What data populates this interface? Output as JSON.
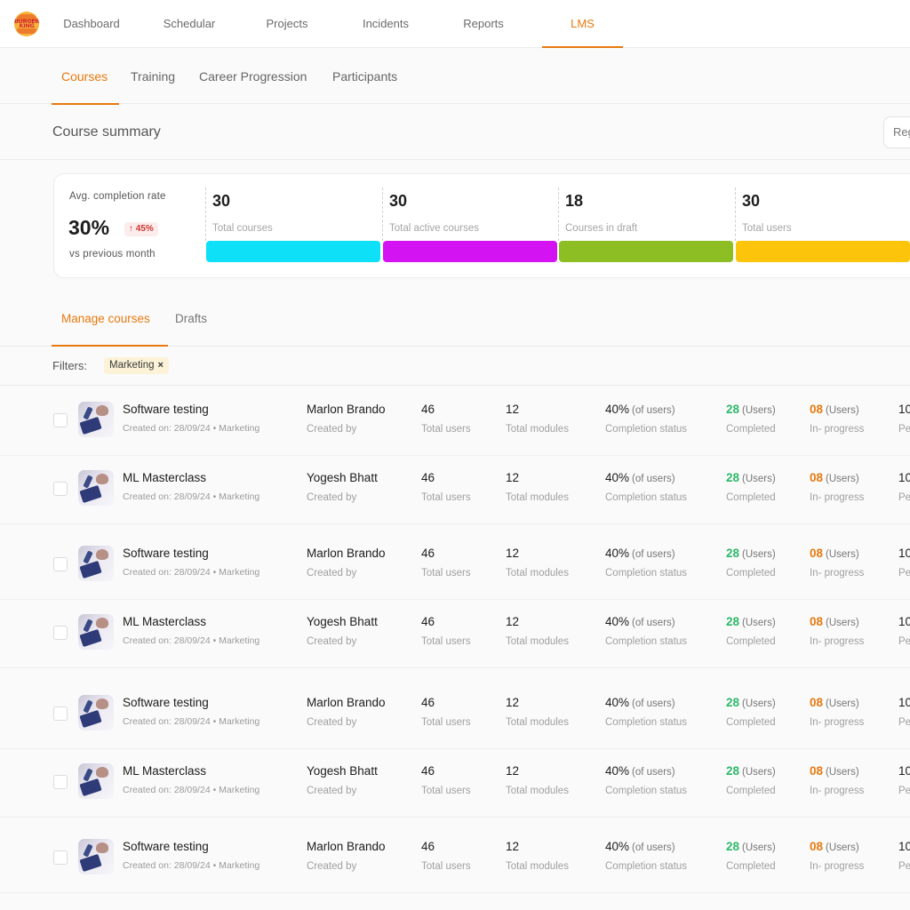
{
  "brand": {
    "logo_text": "BURGER KING"
  },
  "nav": {
    "items": [
      "Dashboard",
      "Schedular",
      "Projects",
      "Incidents",
      "Reports",
      "LMS"
    ],
    "active": "LMS"
  },
  "subnav": {
    "items": [
      "Courses",
      "Training",
      "Career Progression",
      "Participants"
    ],
    "active": "Courses"
  },
  "summary": {
    "title": "Course summary",
    "button_label": "Reg"
  },
  "stats": {
    "avg_label": "Avg. completion rate",
    "avg_value": "30%",
    "avg_change": "↑ 45%",
    "avg_sub": "vs previous month",
    "cards": [
      {
        "value": "30",
        "label": "Total courses",
        "color": "#0ee0f7"
      },
      {
        "value": "30",
        "label": "Total active courses",
        "color": "#d413f2"
      },
      {
        "value": "18",
        "label": "Courses in draft",
        "color": "#8dbf25"
      },
      {
        "value": "30",
        "label": "Total users",
        "color": "#fcc50c"
      }
    ]
  },
  "manage": {
    "tabs": [
      "Manage courses",
      "Drafts"
    ],
    "active": "Manage courses"
  },
  "filters": {
    "label": "Filters:",
    "chips": [
      "Marketing"
    ],
    "chip_remove": "×"
  },
  "courses": [
    {
      "title": "Software testing",
      "meta": "Created on: 28/09/24 • Marketing",
      "creator": "Marlon Brando",
      "creator_label": "Created by",
      "users": "46",
      "users_label": "Total users",
      "modules": "12",
      "modules_label": "Total modules",
      "completion": "40%",
      "completion_unit": "(of users)",
      "completion_label": "Completion status",
      "completed": "28",
      "completed_unit": "(Users)",
      "completed_label": "Completed",
      "inprogress": "08",
      "inprogress_unit": "(Users)",
      "inprogress_label": "In- progress",
      "extra": "10",
      "extra_label": "Pe"
    },
    {
      "title": "ML Masterclass",
      "meta": "Created on: 28/09/24 • Marketing",
      "creator": "Yogesh Bhatt",
      "creator_label": "Created by",
      "users": "46",
      "users_label": "Total users",
      "modules": "12",
      "modules_label": "Total modules",
      "completion": "40%",
      "completion_unit": "(of users)",
      "completion_label": "Completion status",
      "completed": "28",
      "completed_unit": "(Users)",
      "completed_label": "Completed",
      "inprogress": "08",
      "inprogress_unit": "(Users)",
      "inprogress_label": "In- progress",
      "extra": "10",
      "extra_label": "Pe"
    },
    {
      "title": "Software testing",
      "meta": "Created on: 28/09/24 • Marketing",
      "creator": "Marlon Brando",
      "creator_label": "Created by",
      "users": "46",
      "users_label": "Total users",
      "modules": "12",
      "modules_label": "Total modules",
      "completion": "40%",
      "completion_unit": "(of users)",
      "completion_label": "Completion status",
      "completed": "28",
      "completed_unit": "(Users)",
      "completed_label": "Completed",
      "inprogress": "08",
      "inprogress_unit": "(Users)",
      "inprogress_label": "In- progress",
      "extra": "10",
      "extra_label": "Pe"
    },
    {
      "title": "ML Masterclass",
      "meta": "Created on: 28/09/24 • Marketing",
      "creator": "Yogesh Bhatt",
      "creator_label": "Created by",
      "users": "46",
      "users_label": "Total users",
      "modules": "12",
      "modules_label": "Total modules",
      "completion": "40%",
      "completion_unit": "(of users)",
      "completion_label": "Completion status",
      "completed": "28",
      "completed_unit": "(Users)",
      "completed_label": "Completed",
      "inprogress": "08",
      "inprogress_unit": "(Users)",
      "inprogress_label": "In- progress",
      "extra": "10",
      "extra_label": "Pe"
    },
    {
      "title": "Software testing",
      "meta": "Created on: 28/09/24 • Marketing",
      "creator": "Marlon Brando",
      "creator_label": "Created by",
      "users": "46",
      "users_label": "Total users",
      "modules": "12",
      "modules_label": "Total modules",
      "completion": "40%",
      "completion_unit": "(of users)",
      "completion_label": "Completion status",
      "completed": "28",
      "completed_unit": "(Users)",
      "completed_label": "Completed",
      "inprogress": "08",
      "inprogress_unit": "(Users)",
      "inprogress_label": "In- progress",
      "extra": "10",
      "extra_label": "Pe"
    },
    {
      "title": "ML Masterclass",
      "meta": "Created on: 28/09/24 • Marketing",
      "creator": "Yogesh Bhatt",
      "creator_label": "Created by",
      "users": "46",
      "users_label": "Total users",
      "modules": "12",
      "modules_label": "Total modules",
      "completion": "40%",
      "completion_unit": "(of users)",
      "completion_label": "Completion status",
      "completed": "28",
      "completed_unit": "(Users)",
      "completed_label": "Completed",
      "inprogress": "08",
      "inprogress_unit": "(Users)",
      "inprogress_label": "In- progress",
      "extra": "10",
      "extra_label": "Pe"
    },
    {
      "title": "Software testing",
      "meta": "Created on: 28/09/24 • Marketing",
      "creator": "Marlon Brando",
      "creator_label": "Created by",
      "users": "46",
      "users_label": "Total users",
      "modules": "12",
      "modules_label": "Total modules",
      "completion": "40%",
      "completion_unit": "(of users)",
      "completion_label": "Completion status",
      "completed": "28",
      "completed_unit": "(Users)",
      "completed_label": "Completed",
      "inprogress": "08",
      "inprogress_unit": "(Users)",
      "inprogress_label": "In- progress",
      "extra": "10",
      "extra_label": "Pe"
    }
  ]
}
